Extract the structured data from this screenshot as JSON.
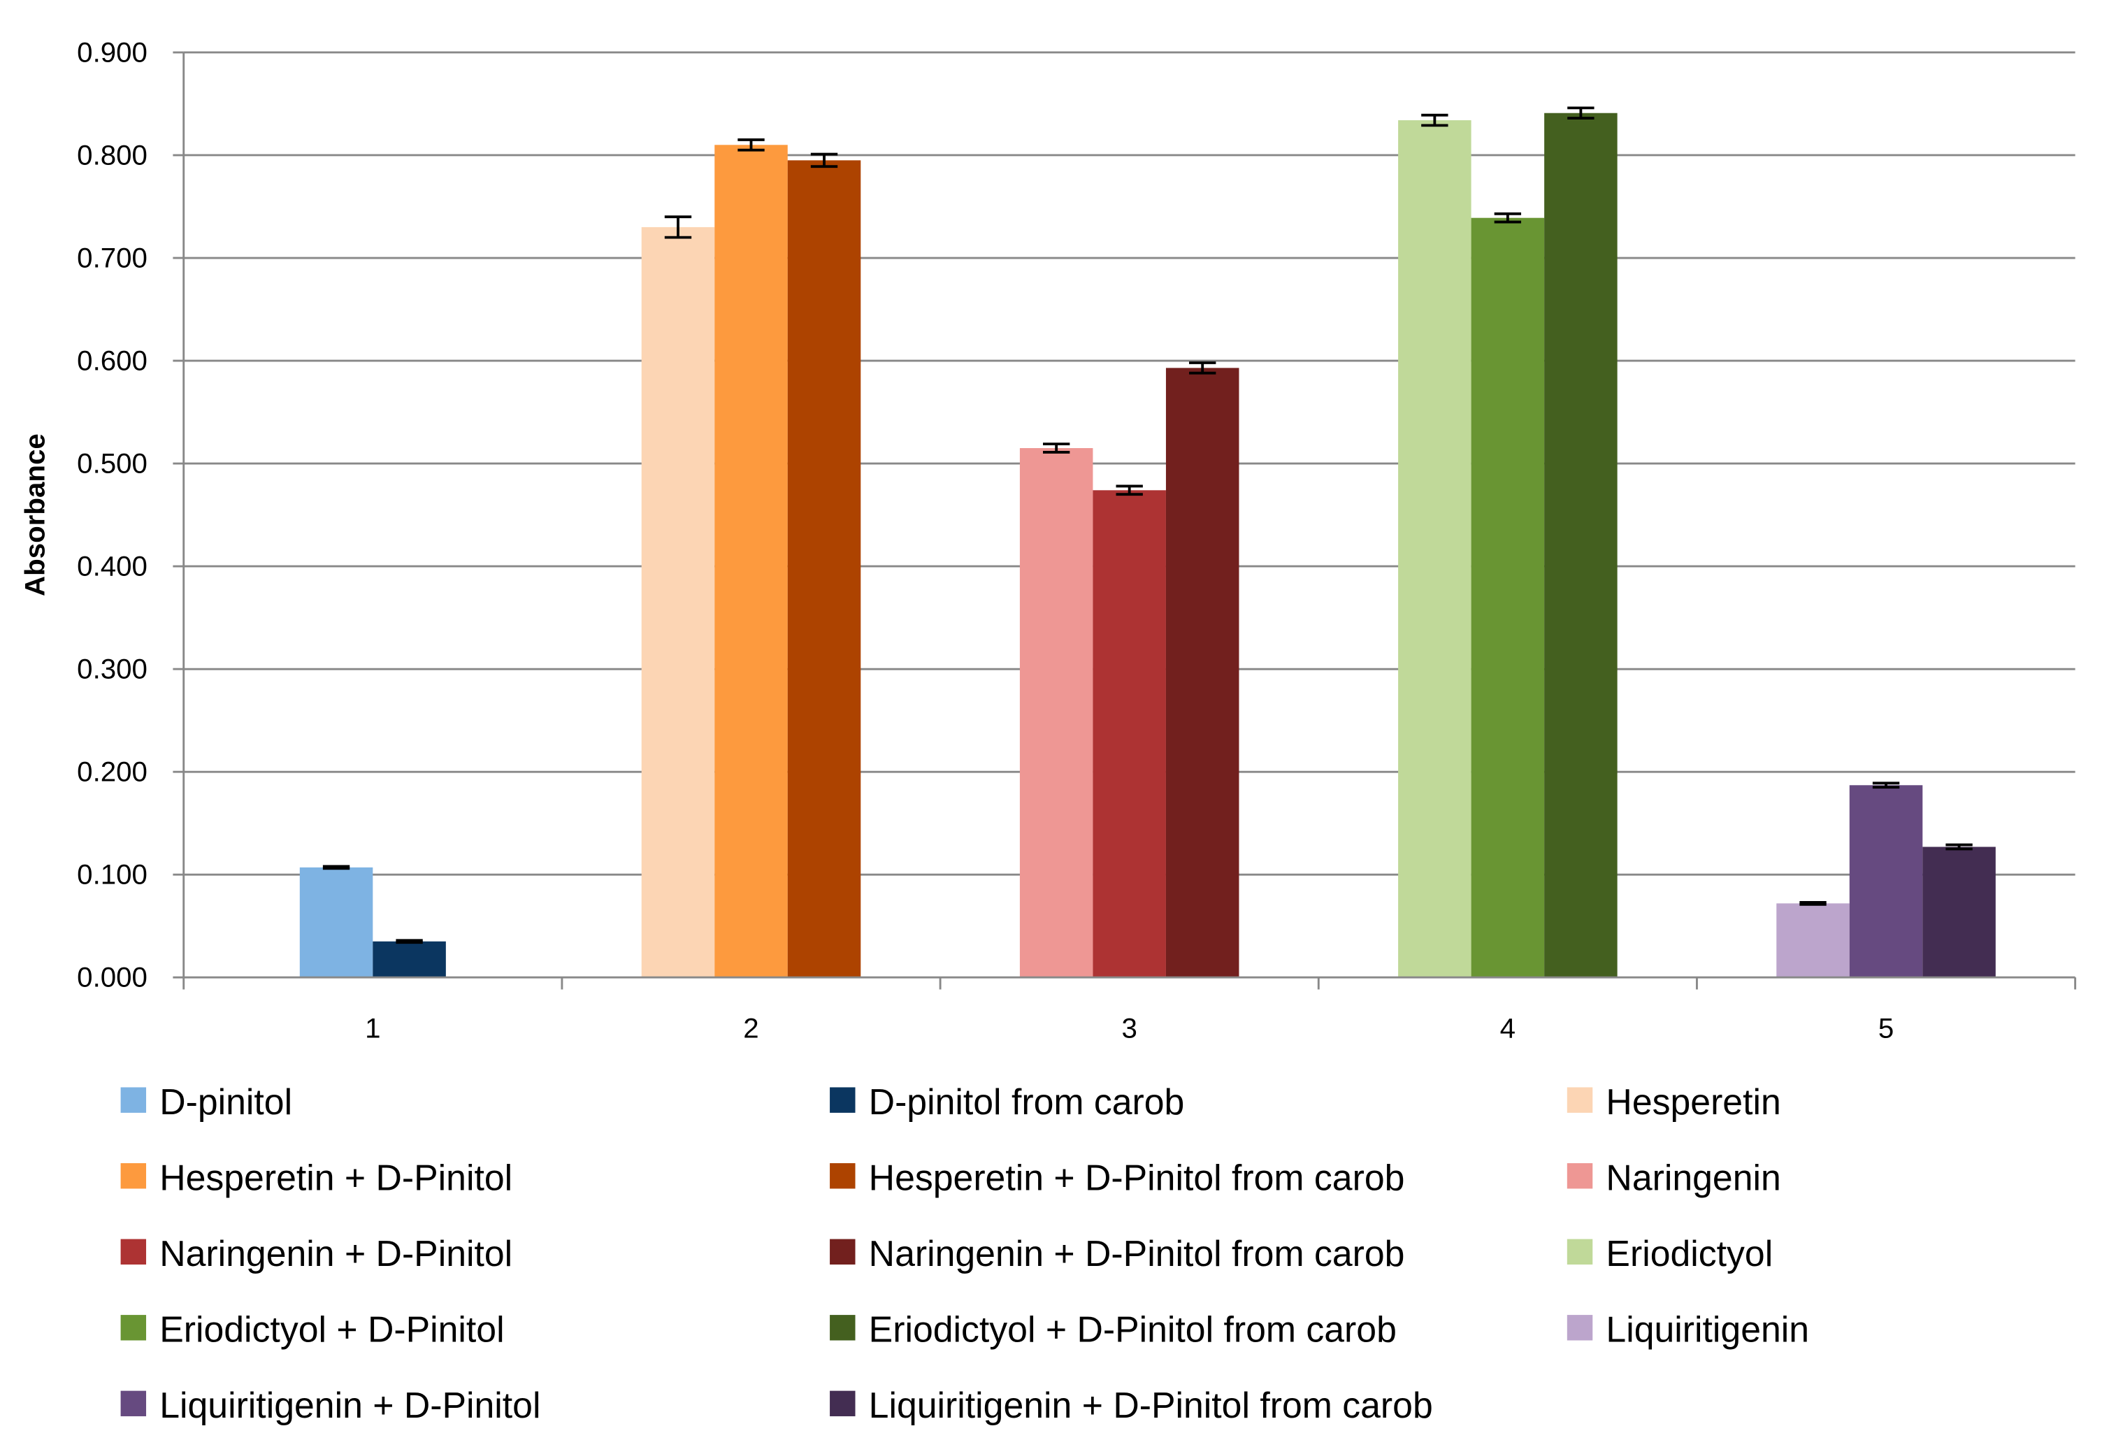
{
  "chart_data": {
    "type": "bar",
    "title": "",
    "xlabel": "",
    "ylabel": "Absorbance",
    "ylim": [
      0,
      0.9
    ],
    "yticks": [
      "0.000",
      "0.100",
      "0.200",
      "0.300",
      "0.400",
      "0.500",
      "0.600",
      "0.700",
      "0.800",
      "0.900"
    ],
    "categories": [
      "1",
      "2",
      "3",
      "4",
      "5"
    ],
    "grid": true,
    "legend_position": "bottom",
    "groups": [
      {
        "category": "1",
        "bars": [
          {
            "name": "D-pinitol",
            "value": 0.107,
            "error": 0.001,
            "color": "#7EB3E3"
          },
          {
            "name": "D-pinitol from carob",
            "value": 0.035,
            "error": 0.001,
            "color": "#0B3660"
          }
        ]
      },
      {
        "category": "2",
        "bars": [
          {
            "name": "Hesperetin",
            "value": 0.73,
            "error": 0.01,
            "color": "#FCD5B4"
          },
          {
            "name": "Hesperetin + D-Pinitol",
            "value": 0.81,
            "error": 0.005,
            "color": "#FD9A3E"
          },
          {
            "name": "Hesperetin + D-Pinitol from carob",
            "value": 0.795,
            "error": 0.006,
            "color": "#AD4300"
          }
        ]
      },
      {
        "category": "3",
        "bars": [
          {
            "name": "Naringenin",
            "value": 0.515,
            "error": 0.004,
            "color": "#EE9794"
          },
          {
            "name": "Naringenin + D-Pinitol",
            "value": 0.474,
            "error": 0.004,
            "color": "#AD3333"
          },
          {
            "name": "Naringenin + D-Pinitol from carob",
            "value": 0.593,
            "error": 0.005,
            "color": "#72201E"
          }
        ]
      },
      {
        "category": "4",
        "bars": [
          {
            "name": "Eriodictyol",
            "value": 0.834,
            "error": 0.005,
            "color": "#C0D999"
          },
          {
            "name": "Eriodictyol + D-Pinitol",
            "value": 0.739,
            "error": 0.004,
            "color": "#699533"
          },
          {
            "name": "Eriodictyol + D-Pinitol from carob",
            "value": 0.841,
            "error": 0.005,
            "color": "#44601F"
          }
        ]
      },
      {
        "category": "5",
        "bars": [
          {
            "name": "Liquiritigenin",
            "value": 0.072,
            "error": 0.001,
            "color": "#BCA5CC"
          },
          {
            "name": "Liquiritigenin + D-Pinitol",
            "value": 0.187,
            "error": 0.002,
            "color": "#664A80"
          },
          {
            "name": "Liquiritigenin + D-Pinitol from carob",
            "value": 0.127,
            "error": 0.002,
            "color": "#432D52"
          }
        ]
      }
    ],
    "legend": [
      {
        "label": "D-pinitol",
        "color": "#7EB3E3"
      },
      {
        "label": "D-pinitol from carob",
        "color": "#0B3660"
      },
      {
        "label": "Hesperetin",
        "color": "#FCD5B4"
      },
      {
        "label": "Hesperetin + D-Pinitol",
        "color": "#FD9A3E"
      },
      {
        "label": "Hesperetin + D-Pinitol from carob",
        "color": "#AD4300"
      },
      {
        "label": "Naringenin",
        "color": "#EE9794"
      },
      {
        "label": "Naringenin + D-Pinitol",
        "color": "#AD3333"
      },
      {
        "label": "Naringenin + D-Pinitol from carob",
        "color": "#72201E"
      },
      {
        "label": "Eriodictyol",
        "color": "#C0D999"
      },
      {
        "label": "Eriodictyol + D-Pinitol",
        "color": "#699533"
      },
      {
        "label": "Eriodictyol + D-Pinitol from carob",
        "color": "#44601F"
      },
      {
        "label": "Liquiritigenin",
        "color": "#BCA5CC"
      },
      {
        "label": "Liquiritigenin + D-Pinitol",
        "color": "#664A80"
      },
      {
        "label": "Liquiritigenin + D-Pinitol from carob",
        "color": "#432D52"
      }
    ]
  }
}
